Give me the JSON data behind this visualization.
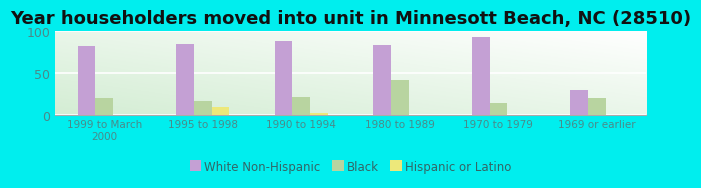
{
  "title": "Year householders moved into unit in Minnesott Beach, NC (28510)",
  "categories": [
    "1999 to March\n2000",
    "1995 to 1998",
    "1990 to 1994",
    "1980 to 1989",
    "1970 to 1979",
    "1969 or earlier"
  ],
  "white_non_hispanic": [
    82,
    85,
    89,
    84,
    93,
    30
  ],
  "black": [
    20,
    16,
    21,
    42,
    14,
    20
  ],
  "hispanic_or_latino": [
    0,
    9,
    2,
    0,
    0,
    0
  ],
  "color_white": "#c4a0d4",
  "color_black": "#b8d4a0",
  "color_hispanic": "#ede87a",
  "background_color": "#00eeee",
  "ylim": [
    0,
    100
  ],
  "yticks": [
    0,
    50,
    100
  ],
  "bar_width": 0.18,
  "title_fontsize": 13,
  "legend_labels": [
    "White Non-Hispanic",
    "Black",
    "Hispanic or Latino"
  ]
}
